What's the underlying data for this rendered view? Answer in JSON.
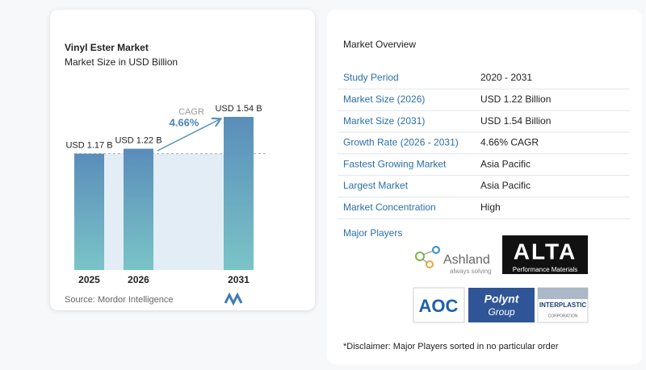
{
  "chart_data": {
    "type": "bar",
    "title": "Vinyl Ester Market",
    "subtitle": "Market Size in USD Billion",
    "categories": [
      "2025",
      "2026",
      "2031"
    ],
    "values": [
      1.17,
      1.22,
      1.54
    ],
    "value_labels": [
      "USD 1.17 B",
      "USD 1.22 B",
      "USD 1.54 B"
    ],
    "annotation": {
      "label": "CAGR",
      "value": "4.66%"
    },
    "source": "Source: Mordor Intelligence"
  },
  "overview": {
    "title": "Market Overview",
    "rows": [
      [
        "Study Period",
        "2020 - 2031"
      ],
      [
        "Market Size (2026)",
        "USD 1.22 Billion"
      ],
      [
        "Market Size (2031)",
        "USD 1.54 Billion"
      ],
      [
        "Growth Rate (2026 - 2031)",
        "4.66% CAGR"
      ],
      [
        "Fastest Growing Market",
        "Asia Pacific"
      ],
      [
        "Largest Market",
        "Asia Pacific"
      ],
      [
        "Market Concentration",
        "High"
      ]
    ]
  },
  "major_players": {
    "title": "Major Players",
    "logos": [
      [
        "Ashland",
        "always solving"
      ],
      [
        "ALTA",
        "Performance Materials"
      ],
      [
        "AOC"
      ],
      [
        "Polynt",
        "Group"
      ],
      [
        "INTERPLASTIC",
        "CORPORATION"
      ]
    ]
  },
  "disclaimer": "*Disclaimer: Major Players sorted in no particular order"
}
